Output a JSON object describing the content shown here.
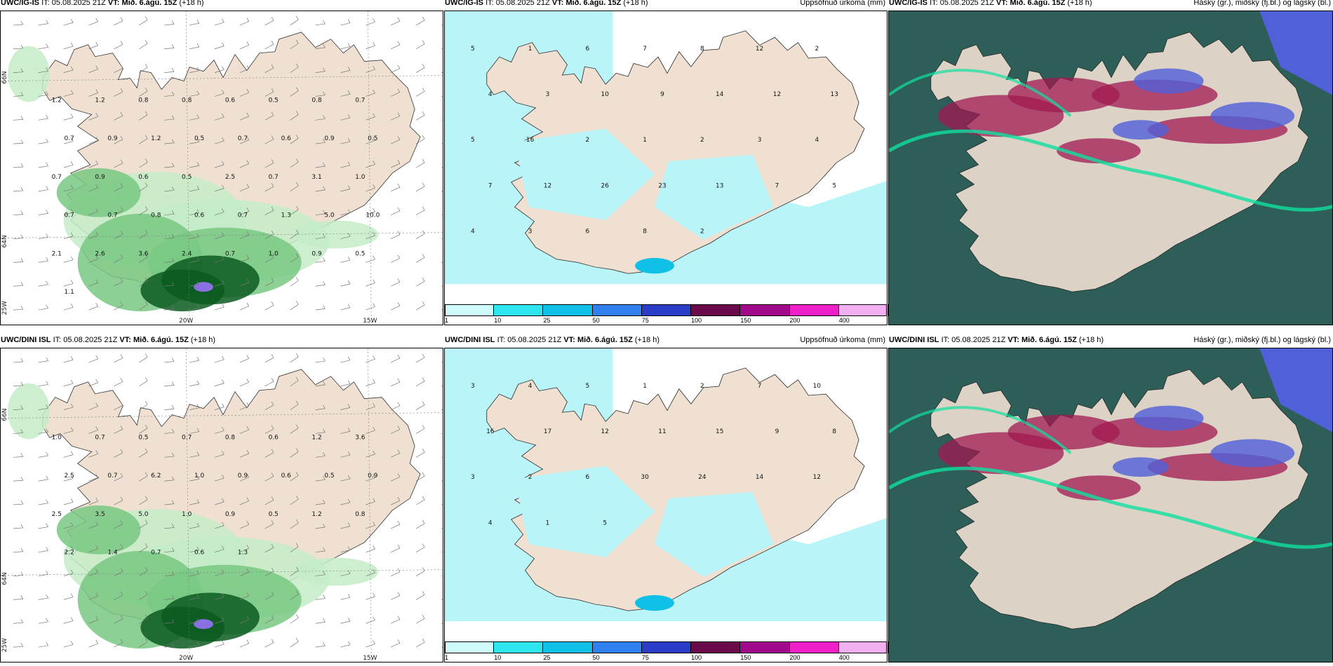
{
  "panels": [
    {
      "model": "UWC/IG-IS",
      "it_label": "IT:",
      "it_value": "05.08.2025 21Z",
      "vt_label": "VT:",
      "vt_value": "Mið. 6.ágú. 15Z",
      "lead": "(+18 h)",
      "right_title": "",
      "axis": {
        "lat_a": "66N",
        "lat_b": "64N",
        "lon_a": "20W",
        "lon_b": "15W",
        "lon_c": "25W"
      },
      "values": [
        "1.2",
        "1.2",
        "0.8",
        "0.8",
        "0.6",
        "0.5",
        "0.8",
        "0.7",
        "0.7",
        "0.9",
        "1.2",
        "0.5",
        "0.7",
        "0.6",
        "0.9",
        "0.5",
        "0.7",
        "0.9",
        "0.6",
        "0.5",
        "2.5",
        "0.7",
        "3.1",
        "1.0",
        "0.7",
        "0.7",
        "0.8",
        "0.6",
        "0.7",
        "1.3",
        "5.0",
        "10.0",
        "2.1",
        "2.6",
        "3.6",
        "2.4",
        "0.7",
        "1.0",
        "0.9",
        "0.5",
        "1.1"
      ]
    },
    {
      "model": "UWC/IG-IS",
      "it_label": "IT:",
      "it_value": "05.08.2025 21Z",
      "vt_label": "VT:",
      "vt_value": "Mið. 6.ágú. 15Z",
      "lead": "(+18 h)",
      "right_title": "Uppsöfnuð úrkoma (mm)",
      "values": [
        "5",
        "1",
        "6",
        "7",
        "8",
        "12",
        "2",
        "4",
        "3",
        "10",
        "9",
        "14",
        "12",
        "13",
        "5",
        "16",
        "2",
        "1",
        "2",
        "3",
        "4",
        "7",
        "12",
        "26",
        "23",
        "13",
        "7",
        "5",
        "4",
        "3",
        "6",
        "8",
        "2"
      ]
    },
    {
      "model": "UWC/IG-IS",
      "it_label": "IT:",
      "it_value": "05.08.2025 21Z",
      "vt_label": "VT:",
      "vt_value": "Mið. 6.ágú. 15Z",
      "lead": "(+18 h)",
      "right_title": "Háský (gr.), miðský (fj.bl.) og lágský (bl.)"
    },
    {
      "model": "UWC/DINI ISL",
      "it_label": "IT:",
      "it_value": "05.08.2025 21Z",
      "vt_label": "VT:",
      "vt_value": "Mið. 6.ágú. 15Z",
      "lead": "(+18 h)",
      "right_title": "",
      "axis": {
        "lat_a": "66N",
        "lat_b": "64N",
        "lon_a": "20W",
        "lon_b": "15W",
        "lon_c": "25W"
      },
      "values": [
        "1.0",
        "0.7",
        "0.5",
        "0.7",
        "0.8",
        "0.6",
        "1.2",
        "3.6",
        "2.5",
        "0.7",
        "6.2",
        "1.0",
        "0.9",
        "0.6",
        "0.5",
        "0.9",
        "2.5",
        "3.5",
        "5.0",
        "1.0",
        "0.9",
        "0.5",
        "1.2",
        "0.8",
        "2.2",
        "1.4",
        "0.7",
        "0.6",
        "1.3"
      ]
    },
    {
      "model": "UWC/DINI ISL",
      "it_label": "IT:",
      "it_value": "05.08.2025 21Z",
      "vt_label": "VT:",
      "vt_value": "Mið. 6.ágú. 15Z",
      "lead": "(+18 h)",
      "right_title": "Uppsöfnuð úrkoma (mm)",
      "values": [
        "3",
        "4",
        "5",
        "1",
        "2",
        "7",
        "10",
        "16",
        "17",
        "12",
        "11",
        "15",
        "9",
        "8",
        "3",
        "2",
        "6",
        "30",
        "24",
        "14",
        "12",
        "4",
        "1",
        "5"
      ]
    },
    {
      "model": "UWC/DINI ISL",
      "it_label": "IT:",
      "it_value": "05.08.2025 21Z",
      "vt_label": "VT:",
      "vt_value": "Mið. 6.ágú. 15Z",
      "lead": "(+18 h)",
      "right_title": "Háský (gr.), miðský (fj.bl.) og lágský (bl.)"
    }
  ],
  "colorbar": {
    "ticks": [
      "1",
      "10",
      "25",
      "50",
      "75",
      "100",
      "150",
      "200",
      "400"
    ],
    "colors": [
      "#cffbfb",
      "#2ee6f0",
      "#10c0e6",
      "#3080f0",
      "#2a3cc8",
      "#6a0a4a",
      "#a00a8a",
      "#f020c8",
      "#f2b0f0"
    ]
  },
  "colors": {
    "land": "#efe0d2",
    "precip_light": "#b8f4f8",
    "green_light": "#c4ecc8",
    "green_mid": "#78c882",
    "green_dark": "#0a5a20",
    "cloud_low": "#2e5e58",
    "cloud_mid": "#5060d8",
    "cloud_high": "#a01850",
    "cloud_edge": "#10e0a0"
  }
}
